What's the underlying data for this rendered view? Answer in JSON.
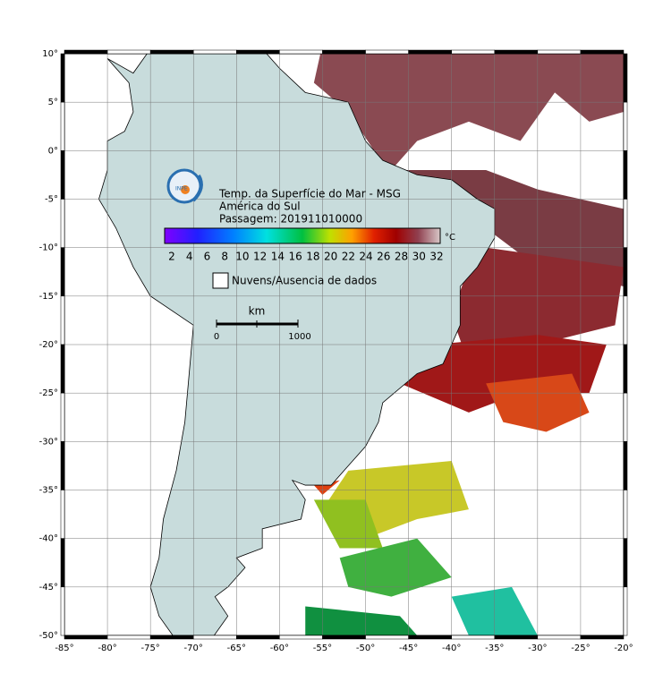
{
  "map": {
    "title": "Temp. da Superfície do Mar - MSG",
    "region": "América do Sul",
    "pass": "Passagem: 201911010000",
    "colorbar": {
      "unit": "°C",
      "ticks": [
        "2",
        "4",
        "6",
        "8",
        "10",
        "12",
        "14",
        "16",
        "18",
        "20",
        "22",
        "24",
        "26",
        "28",
        "30",
        "32"
      ]
    },
    "legend": "Nuvens/Ausencia de dados",
    "scale": {
      "unit": "km",
      "start": "0",
      "end": "1000"
    },
    "lon_ticks": [
      "-85°",
      "-80°",
      "-75°",
      "-70°",
      "-65°",
      "-60°",
      "-55°",
      "-50°",
      "-45°",
      "-40°",
      "-35°",
      "-30°",
      "-25°",
      "-20°"
    ],
    "lat_ticks": [
      "10°",
      "5°",
      "0°",
      "-5°",
      "-10°",
      "-15°",
      "-20°",
      "-25°",
      "-30°",
      "-35°",
      "-40°",
      "-45°",
      "-50°"
    ]
  }
}
